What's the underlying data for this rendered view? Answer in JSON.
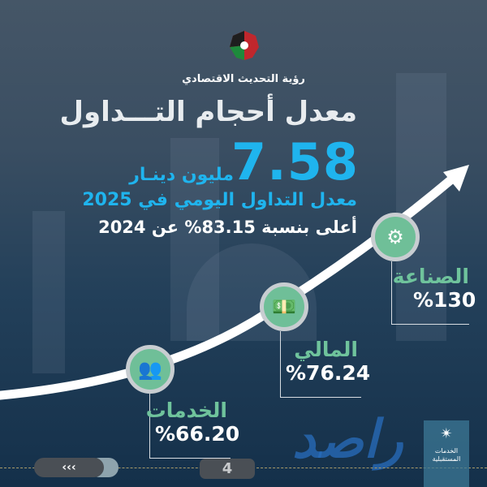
{
  "header": {
    "org": "رؤية التحديث الاقتصادي",
    "title": "معدل أحجام التـــداول"
  },
  "headline": {
    "value": "7.58",
    "unit": "مليون دينـار",
    "subtitle": "معدل التداول اليومي في 2025",
    "comparison": "أعلى بنسبة 83.15% عن 2024"
  },
  "sectors": [
    {
      "name": "الخدمات",
      "value": "%66.20",
      "icon": "people-group-icon"
    },
    {
      "name": "المالي",
      "value": "%76.24",
      "icon": "banknote-icon"
    },
    {
      "name": "الصناعة",
      "value": "%130",
      "icon": "factory-gear-icon"
    }
  ],
  "footer": {
    "prev_label": "‹‹‹",
    "page": "4",
    "logo_text": "الخدمات المستقبلية",
    "watermark": "راصد"
  },
  "colors": {
    "accent": "#1fb4ee",
    "green": "#6fc39c",
    "curve": "#ffffff"
  }
}
